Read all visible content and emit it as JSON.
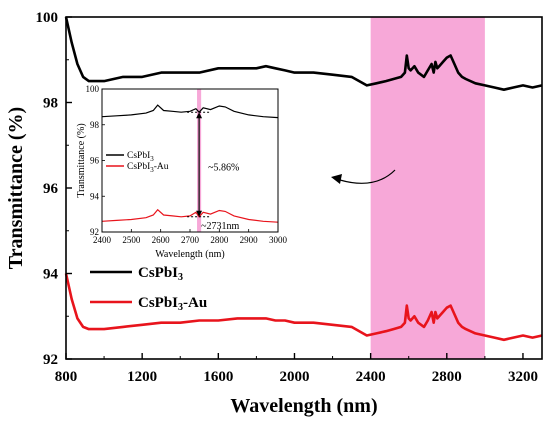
{
  "chart_data": [
    {
      "type": "line",
      "xlabel": "Wavelength (nm)",
      "ylabel": "Transmittance (%)",
      "xlim": [
        800,
        3300
      ],
      "ylim": [
        92,
        100
      ],
      "xticks": [
        800,
        1200,
        1600,
        2000,
        2400,
        2800,
        3200
      ],
      "yticks": [
        92,
        94,
        96,
        98,
        100
      ],
      "highlight_band": {
        "x_range": [
          2400,
          3000
        ],
        "color": "#f7a8d8"
      },
      "legend": {
        "placement": "left"
      },
      "series": [
        {
          "name": "CsPbI3",
          "color": "#000000",
          "x": [
            800,
            830,
            860,
            890,
            920,
            960,
            1000,
            1100,
            1200,
            1300,
            1400,
            1500,
            1600,
            1700,
            1800,
            1850,
            1900,
            1950,
            2000,
            2100,
            2200,
            2300,
            2380,
            2430,
            2480,
            2520,
            2560,
            2580,
            2590,
            2600,
            2610,
            2630,
            2650,
            2680,
            2700,
            2720,
            2731,
            2740,
            2750,
            2760,
            2780,
            2800,
            2820,
            2840,
            2860,
            2880,
            2900,
            2950,
            3000,
            3050,
            3100,
            3150,
            3200,
            3250,
            3300
          ],
          "y": [
            100.0,
            99.4,
            98.9,
            98.6,
            98.5,
            98.5,
            98.5,
            98.6,
            98.6,
            98.7,
            98.7,
            98.7,
            98.8,
            98.8,
            98.8,
            98.85,
            98.8,
            98.75,
            98.7,
            98.7,
            98.65,
            98.6,
            98.4,
            98.45,
            98.5,
            98.55,
            98.6,
            98.7,
            99.1,
            98.8,
            98.75,
            98.85,
            98.7,
            98.6,
            98.75,
            98.9,
            98.7,
            98.95,
            98.8,
            98.85,
            98.95,
            99.05,
            99.1,
            98.9,
            98.7,
            98.6,
            98.55,
            98.45,
            98.4,
            98.35,
            98.3,
            98.35,
            98.4,
            98.35,
            98.4
          ]
        },
        {
          "name": "CsPbI3-Au",
          "color": "#e8141c",
          "x": [
            800,
            830,
            860,
            890,
            920,
            960,
            1000,
            1100,
            1200,
            1300,
            1400,
            1500,
            1600,
            1700,
            1800,
            1850,
            1900,
            1950,
            2000,
            2100,
            2200,
            2300,
            2380,
            2430,
            2480,
            2520,
            2560,
            2580,
            2590,
            2600,
            2610,
            2630,
            2650,
            2680,
            2700,
            2720,
            2731,
            2740,
            2750,
            2760,
            2780,
            2800,
            2820,
            2840,
            2860,
            2880,
            2900,
            2950,
            3000,
            3050,
            3100,
            3150,
            3200,
            3250,
            3300
          ],
          "y": [
            94.0,
            93.4,
            92.95,
            92.75,
            92.7,
            92.7,
            92.7,
            92.75,
            92.8,
            92.85,
            92.85,
            92.9,
            92.9,
            92.95,
            92.95,
            92.95,
            92.9,
            92.9,
            92.85,
            92.85,
            92.8,
            92.75,
            92.55,
            92.6,
            92.65,
            92.7,
            92.75,
            92.85,
            93.25,
            92.95,
            92.9,
            93.0,
            92.85,
            92.75,
            92.9,
            93.1,
            92.85,
            93.1,
            92.95,
            93.0,
            93.1,
            93.2,
            93.25,
            93.05,
            92.85,
            92.75,
            92.7,
            92.6,
            92.55,
            92.5,
            92.45,
            92.5,
            92.55,
            92.5,
            92.55
          ]
        }
      ]
    },
    {
      "type": "line",
      "xlabel": "Wavelength (nm)",
      "ylabel": "Transmittance (%)",
      "xlim": [
        2400,
        3000
      ],
      "ylim": [
        92,
        100
      ],
      "xticks": [
        2400,
        2500,
        2600,
        2700,
        2800,
        2900,
        3000
      ],
      "yticks": [
        92,
        94,
        96,
        98,
        100
      ],
      "highlight_band": {
        "x_range": [
          2724,
          2738
        ],
        "color": "#f7a8d8"
      },
      "annotations": [
        {
          "text": "~5.86%",
          "x": 2740,
          "y": 95.6
        },
        {
          "text": "~2731nm",
          "x": 2731,
          "y": 92.3
        }
      ],
      "legend": {
        "placement": "middle-left"
      },
      "series": [
        {
          "name": "CsPbI3",
          "color": "#000000",
          "x": [
            2400,
            2450,
            2500,
            2550,
            2575,
            2590,
            2610,
            2640,
            2670,
            2700,
            2720,
            2731,
            2745,
            2770,
            2800,
            2820,
            2850,
            2900,
            2950,
            3000
          ],
          "y": [
            98.45,
            98.5,
            98.55,
            98.65,
            98.8,
            99.1,
            98.8,
            98.75,
            98.7,
            98.75,
            98.9,
            98.7,
            98.95,
            98.85,
            99.05,
            99.0,
            98.75,
            98.55,
            98.45,
            98.4
          ],
          "series_label_print": [
            "CsPbI",
            "3",
            ""
          ]
        },
        {
          "name": "CsPbI3-Au",
          "color": "#e8141c",
          "x": [
            2400,
            2450,
            2500,
            2550,
            2575,
            2590,
            2610,
            2640,
            2670,
            2700,
            2720,
            2731,
            2745,
            2770,
            2800,
            2820,
            2850,
            2900,
            2950,
            3000
          ],
          "y": [
            92.6,
            92.65,
            92.7,
            92.8,
            92.95,
            93.25,
            92.95,
            92.9,
            92.85,
            92.9,
            93.1,
            92.85,
            93.1,
            93.0,
            93.2,
            93.15,
            92.9,
            92.7,
            92.6,
            92.55
          ],
          "series_label_print": [
            "CsPbI",
            "3",
            "-Au"
          ]
        }
      ]
    }
  ],
  "main_legend": [
    {
      "base": "CsPbI",
      "sub": "3",
      "suffix": ""
    },
    {
      "base": "CsPbI",
      "sub": "3",
      "suffix": "-Au"
    }
  ]
}
